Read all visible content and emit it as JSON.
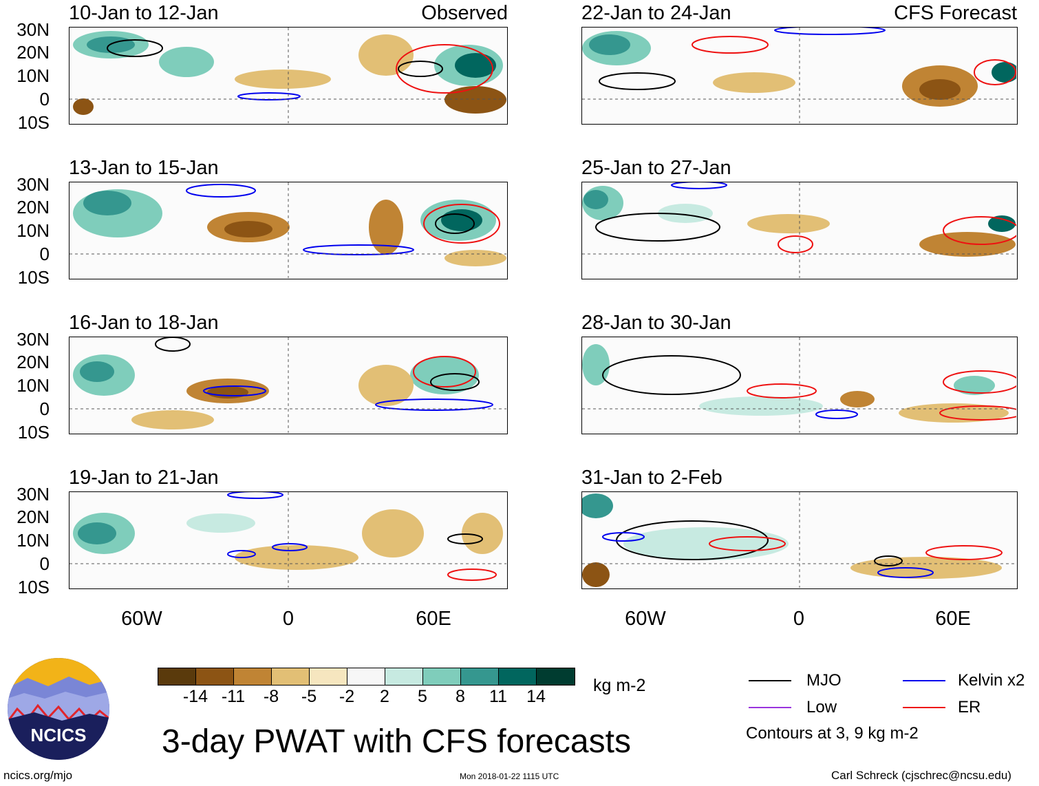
{
  "title": "3-day PWAT with CFS forecasts",
  "left_header": "Observed",
  "right_header": "CFS Forecast",
  "left_panels": [
    "10-Jan to 12-Jan",
    "13-Jan to 15-Jan",
    "16-Jan to 18-Jan",
    "19-Jan to 21-Jan"
  ],
  "right_panels": [
    "22-Jan to 24-Jan",
    "25-Jan to 27-Jan",
    "28-Jan to 30-Jan",
    "31-Jan to 2-Feb"
  ],
  "lat_labels": [
    "30N",
    "20N",
    "10N",
    "0",
    "10S"
  ],
  "lon_labels": [
    "60W",
    "0",
    "60E"
  ],
  "colorbar": {
    "unit": "kg m-2",
    "ticks": [
      "-14",
      "-11",
      "-8",
      "-5",
      "-2",
      "2",
      "5",
      "8",
      "11",
      "14"
    ],
    "colors": [
      "#5a3a0c",
      "#8c5414",
      "#c08434",
      "#e2bf75",
      "#f6e6bf",
      "#f7f7f7",
      "#c7eae1",
      "#7fcdbb",
      "#35978f",
      "#01665e",
      "#003c30"
    ]
  },
  "legend": {
    "mjo": "MJO",
    "kelvin": "Kelvin x2",
    "low": "Low",
    "er": "ER",
    "note": "Contours at 3, 9 kg m-2",
    "colors": {
      "mjo": "#000000",
      "kelvin": "#0000ee",
      "low": "#9933dd",
      "er": "#ee1111"
    }
  },
  "logo_text": "NCICS",
  "footer": {
    "left": "ncics.org/mjo",
    "center": "Mon 2018-01-22 1115 UTC",
    "right": "Carl Schreck (cjschrec@ncsu.edu)"
  }
}
